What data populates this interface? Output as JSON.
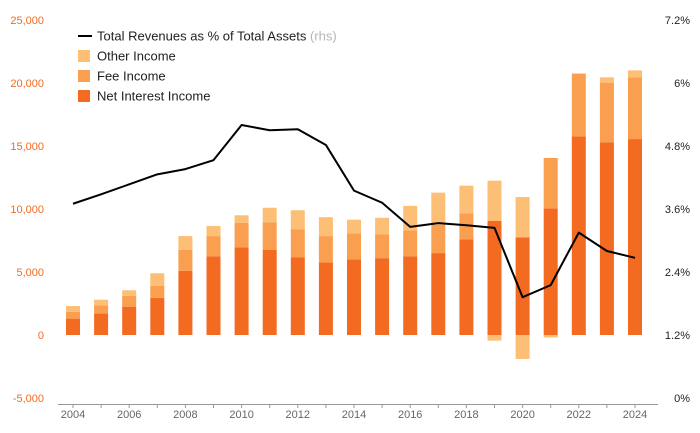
{
  "chart_data": {
    "type": "bar",
    "title": "",
    "xlabel": "",
    "ylabel": "",
    "ylim": [
      -5000,
      25000
    ],
    "yticks": [
      -5000,
      0,
      5000,
      10000,
      15000,
      20000,
      25000
    ],
    "ytick_labels": [
      "-5,000",
      "0",
      "5,000",
      "10,000",
      "15,000",
      "20,000",
      "25,000"
    ],
    "y2lim": [
      0,
      7.2
    ],
    "y2ticks": [
      0,
      1.2,
      2.4,
      3.6,
      4.8,
      6,
      7.2
    ],
    "y2tick_labels": [
      "0%",
      "1.2%",
      "2.4%",
      "3.6%",
      "4.8%",
      "6%",
      "7.2%"
    ],
    "x": [
      2004,
      2005,
      2006,
      2007,
      2008,
      2009,
      2010,
      2011,
      2012,
      2013,
      2014,
      2015,
      2016,
      2017,
      2018,
      2019,
      2020,
      2021,
      2022,
      2023,
      2024
    ],
    "xtick_labels": [
      "2004",
      "2006",
      "2008",
      "2010",
      "2012",
      "2014",
      "2016",
      "2018",
      "2020",
      "2022",
      "2024"
    ],
    "stacked": true,
    "series": [
      {
        "name": "Net Interest Income",
        "color": "#f26b21",
        "values": [
          1300,
          1700,
          2250,
          2950,
          5100,
          6250,
          6950,
          6750,
          6150,
          5750,
          6000,
          6100,
          6250,
          6500,
          7600,
          9050,
          7750,
          10050,
          15750,
          15300,
          15550
        ]
      },
      {
        "name": "Fee Income",
        "color": "#f99f4f",
        "values": [
          550,
          650,
          850,
          950,
          1650,
          1600,
          1950,
          2200,
          2250,
          2100,
          2050,
          1900,
          2050,
          2250,
          2050,
          0,
          0,
          4000,
          5000,
          4700,
          4900
        ]
      },
      {
        "name": "Other Income",
        "color": "#fdbf75",
        "values": [
          450,
          450,
          450,
          1000,
          1100,
          800,
          600,
          1150,
          1500,
          1500,
          1100,
          1300,
          1950,
          2550,
          2200,
          3200,
          3200,
          -200,
          0,
          450,
          550
        ]
      },
      {
        "name": "Total Revenues as % of Total Assets",
        "name_suffix": "(rhs)",
        "axis": "right",
        "type": "line",
        "color": "#000000",
        "values": [
          3.7,
          3.88,
          4.07,
          4.26,
          4.36,
          4.53,
          5.2,
          5.1,
          5.12,
          4.82,
          3.95,
          3.72,
          3.26,
          3.33,
          3.29,
          3.24,
          1.92,
          2.15,
          3.15,
          2.8,
          2.67
        ]
      }
    ],
    "negative_other_income": [
      0,
      0,
      0,
      0,
      0,
      0,
      0,
      0,
      0,
      0,
      0,
      0,
      0,
      0,
      0,
      -450,
      -1900,
      0,
      0,
      0,
      0
    ],
    "legend": {
      "placement": "top-left",
      "entries": [
        {
          "label": "Total Revenues as % of Total Assets",
          "suffix": "(rhs)",
          "kind": "line",
          "color": "#000000"
        },
        {
          "label": "Other Income",
          "kind": "bar",
          "color": "#fdbf75"
        },
        {
          "label": "Fee Income",
          "kind": "bar",
          "color": "#f99f4f"
        },
        {
          "label": "Net Interest Income",
          "kind": "bar",
          "color": "#f26b21"
        }
      ]
    },
    "grid": false
  }
}
